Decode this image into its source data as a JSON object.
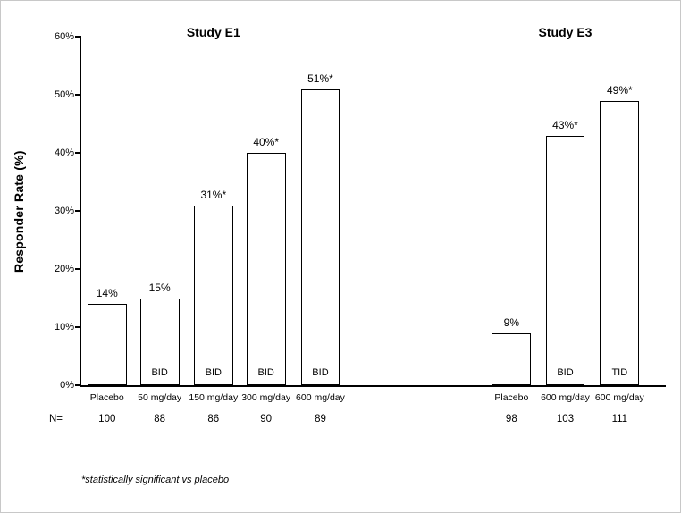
{
  "chart_data": {
    "type": "bar",
    "ylabel": "Responder Rate (%)",
    "ylim": [
      0,
      60
    ],
    "ytick_step": 10,
    "yticks": [
      "0%",
      "10%",
      "20%",
      "30%",
      "40%",
      "50%",
      "60%"
    ],
    "grid": false,
    "legend": false,
    "bar_fill_color": "#ffffff",
    "bar_border_color": "#000000",
    "groups": [
      {
        "label": "Study E1",
        "title_center_pct": 22.6
      },
      {
        "label": "Study E3",
        "title_center_pct": 82.8
      }
    ],
    "bar_width_pct": 6.7,
    "bars": [
      {
        "group": "Study E1",
        "category": "Placebo",
        "value": 14,
        "value_label": "14%",
        "inside_label": "",
        "n": "100",
        "center_pct": 4.4
      },
      {
        "group": "Study E1",
        "category": "50 mg/day",
        "value": 15,
        "value_label": "15%",
        "inside_label": "BID",
        "n": "88",
        "center_pct": 13.4
      },
      {
        "group": "Study E1",
        "category": "150 mg/day",
        "value": 31,
        "value_label": "31%*",
        "inside_label": "BID",
        "n": "86",
        "center_pct": 22.6
      },
      {
        "group": "Study E1",
        "category": "300 mg/day",
        "value": 40,
        "value_label": "40%*",
        "inside_label": "BID",
        "n": "90",
        "center_pct": 31.6
      },
      {
        "group": "Study E1",
        "category": "600 mg/day",
        "value": 51,
        "value_label": "51%*",
        "inside_label": "BID",
        "n": "89",
        "center_pct": 40.9
      },
      {
        "group": "Study E3",
        "category": "Placebo",
        "value": 9,
        "value_label": "9%",
        "inside_label": "",
        "n": "98",
        "center_pct": 73.6
      },
      {
        "group": "Study E3",
        "category": "600 mg/day",
        "value": 43,
        "value_label": "43%*",
        "inside_label": "BID",
        "n": "103",
        "center_pct": 82.8
      },
      {
        "group": "Study E3",
        "category": "600 mg/day",
        "value": 49,
        "value_label": "49%*",
        "inside_label": "TID",
        "n": "111",
        "center_pct": 92.1
      }
    ],
    "n_row_label": "N=",
    "footnote": "*statistically significant vs placebo"
  }
}
